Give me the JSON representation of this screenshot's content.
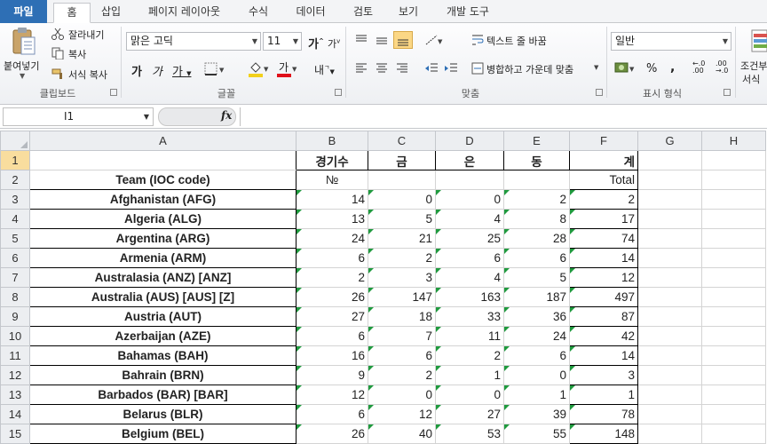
{
  "tabs": [
    "파일",
    "홈",
    "삽입",
    "페이지 레이아웃",
    "수식",
    "데이터",
    "검토",
    "보기",
    "개발 도구"
  ],
  "ribbon": {
    "paste_label": "붙여넣기",
    "cut_label": "잘라내기",
    "copy_label": "복사",
    "format_painter_label": "서식 복사",
    "clipboard_group": "클립보드",
    "font_name": "맑은 고딕",
    "font_size": "11",
    "font_group": "글꼴",
    "wrap_text_label": "텍스트 줄 바꿈",
    "merge_center_label": "병합하고 가운데 맞춤",
    "alignment_group": "맞춤",
    "number_format": "일반",
    "number_group": "표시 형식",
    "conditional_label_1": "조건부",
    "conditional_label_2": "서식",
    "accent_fill": "#f2d01b",
    "accent_font": "#e0101a"
  },
  "formula_bar": {
    "name_box": "I1",
    "fx": "fx",
    "formula": ""
  },
  "columns": [
    "A",
    "B",
    "C",
    "D",
    "E",
    "F",
    "G",
    "H"
  ],
  "rows": [
    {
      "n": "1",
      "a": "",
      "b": "경기수",
      "c": "금",
      "d": "은",
      "e": "동",
      "f": "계"
    },
    {
      "n": "2",
      "a": "Team (IOC code)",
      "b": "№",
      "c": "",
      "d": "",
      "e": "",
      "f": "Total"
    },
    {
      "n": "3",
      "a": "Afghanistan (AFG)",
      "b": "14",
      "c": "0",
      "d": "0",
      "e": "2",
      "f": "2"
    },
    {
      "n": "4",
      "a": "Algeria (ALG)",
      "b": "13",
      "c": "5",
      "d": "4",
      "e": "8",
      "f": "17"
    },
    {
      "n": "5",
      "a": "Argentina (ARG)",
      "b": "24",
      "c": "21",
      "d": "25",
      "e": "28",
      "f": "74"
    },
    {
      "n": "6",
      "a": "Armenia (ARM)",
      "b": "6",
      "c": "2",
      "d": "6",
      "e": "6",
      "f": "14"
    },
    {
      "n": "7",
      "a": "Australasia (ANZ) [ANZ]",
      "b": "2",
      "c": "3",
      "d": "4",
      "e": "5",
      "f": "12"
    },
    {
      "n": "8",
      "a": "Australia (AUS) [AUS] [Z]",
      "b": "26",
      "c": "147",
      "d": "163",
      "e": "187",
      "f": "497"
    },
    {
      "n": "9",
      "a": "Austria (AUT)",
      "b": "27",
      "c": "18",
      "d": "33",
      "e": "36",
      "f": "87"
    },
    {
      "n": "10",
      "a": "Azerbaijan (AZE)",
      "b": "6",
      "c": "7",
      "d": "11",
      "e": "24",
      "f": "42"
    },
    {
      "n": "11",
      "a": "Bahamas (BAH)",
      "b": "16",
      "c": "6",
      "d": "2",
      "e": "6",
      "f": "14"
    },
    {
      "n": "12",
      "a": "Bahrain (BRN)",
      "b": "9",
      "c": "2",
      "d": "1",
      "e": "0",
      "f": "3"
    },
    {
      "n": "13",
      "a": "Barbados (BAR) [BAR]",
      "b": "12",
      "c": "0",
      "d": "0",
      "e": "1",
      "f": "1"
    },
    {
      "n": "14",
      "a": "Belarus (BLR)",
      "b": "6",
      "c": "12",
      "d": "27",
      "e": "39",
      "f": "78"
    },
    {
      "n": "15",
      "a": "Belgium (BEL)",
      "b": "26",
      "c": "40",
      "d": "53",
      "e": "55",
      "f": "148"
    }
  ]
}
